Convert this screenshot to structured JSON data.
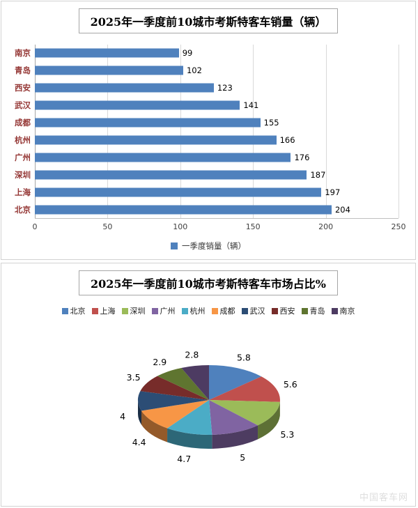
{
  "watermark": "中国客车网",
  "chart_data": [
    {
      "type": "bar",
      "orientation": "horizontal",
      "title": "2025年一季度前10城市考斯特客车销量（辆）",
      "categories": [
        "南京",
        "青岛",
        "西安",
        "武汉",
        "成都",
        "杭州",
        "广州",
        "深圳",
        "上海",
        "北京"
      ],
      "values": [
        99,
        102,
        123,
        141,
        155,
        166,
        176,
        187,
        197,
        204
      ],
      "value_labels": [
        "99",
        "102",
        "123",
        "141",
        "155",
        "166",
        "176",
        "187",
        "197",
        "204"
      ],
      "xlim": [
        0,
        250
      ],
      "x_ticks": [
        0,
        50,
        100,
        150,
        200,
        250
      ],
      "grid": true,
      "legend": [
        "一季度销量（辆）"
      ],
      "legend_position": "bottom",
      "bar_color": "#4f81bd",
      "category_label_color": "#943634"
    },
    {
      "type": "pie",
      "style": "3d",
      "title": "2025年一季度前10城市考斯特客车市场占比%",
      "labels": [
        "北京",
        "上海",
        "深圳",
        "广州",
        "杭州",
        "成都",
        "武汉",
        "西安",
        "青岛",
        "南京"
      ],
      "values": [
        5.8,
        5.6,
        5.3,
        5,
        4.7,
        4.4,
        4,
        3.5,
        2.9,
        2.8
      ],
      "value_labels": [
        "5.8",
        "5.6",
        "5.3",
        "5",
        "4.7",
        "4.4",
        "4",
        "3.5",
        "2.9",
        "2.8"
      ],
      "colors": [
        "#4f81bd",
        "#c0504d",
        "#9bbb59",
        "#8064a2",
        "#4bacc6",
        "#f79646",
        "#2c4d75",
        "#772c2a",
        "#5f7530",
        "#4d3b62"
      ],
      "legend_position": "top"
    }
  ]
}
